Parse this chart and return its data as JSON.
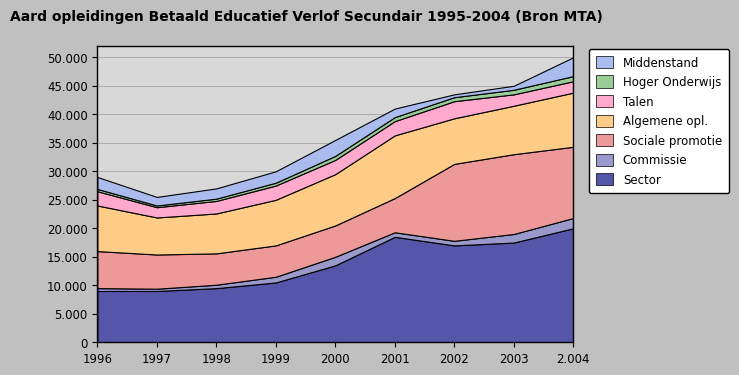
{
  "title": "Aard opleidingen Betaald Educatief Verlof Secundair 1995-2004 (Bron MTA)",
  "years": [
    1996,
    1997,
    1998,
    1999,
    2000,
    2001,
    2002,
    2003,
    2004
  ],
  "x_labels": [
    "1996",
    "1997",
    "1998",
    "1999",
    "2000",
    "2001",
    "2002",
    "2003",
    "2.004"
  ],
  "series": {
    "Sector": [
      9000,
      9000,
      9500,
      10500,
      13500,
      18500,
      17000,
      17500,
      20000
    ],
    "Commissie": [
      500,
      400,
      600,
      1000,
      1500,
      800,
      800,
      1500,
      1800
    ],
    "Sociale promotie": [
      6500,
      6000,
      5500,
      5500,
      5500,
      6000,
      13500,
      14000,
      12500
    ],
    "Algemene opl.": [
      8000,
      6500,
      7000,
      8000,
      9000,
      11000,
      8000,
      8500,
      9500
    ],
    "Talen": [
      2500,
      1800,
      2200,
      2500,
      2500,
      2500,
      3000,
      2000,
      2000
    ],
    "Hoger Onderwijs": [
      400,
      300,
      400,
      500,
      700,
      700,
      700,
      800,
      900
    ],
    "Middenstand": [
      2100,
      1500,
      1800,
      2000,
      2800,
      1500,
      500,
      700,
      3300
    ]
  },
  "colors": {
    "Sector": "#5555aa",
    "Commissie": "#9999cc",
    "Sociale promotie": "#ee9999",
    "Algemene opl.": "#ffcc88",
    "Talen": "#ffaacc",
    "Hoger Onderwijs": "#99cc99",
    "Middenstand": "#aabbee"
  },
  "ylim": [
    0,
    52000
  ],
  "yticks": [
    0,
    5000,
    10000,
    15000,
    20000,
    25000,
    30000,
    35000,
    40000,
    45000,
    50000
  ],
  "ytick_labels": [
    "0",
    "5.000",
    "10.000",
    "15.000",
    "20.000",
    "25.000",
    "30.000",
    "35.000",
    "40.000",
    "45.000",
    "50.000"
  ],
  "background_color": "#c0c0c0",
  "plot_bg_color": "#d8d8d8",
  "title_fontsize": 10,
  "tick_fontsize": 8.5
}
